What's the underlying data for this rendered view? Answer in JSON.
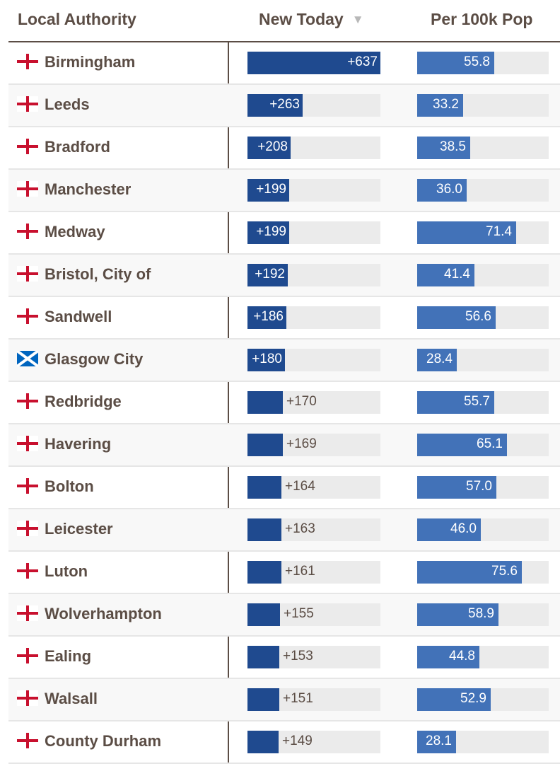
{
  "chart_data": {
    "type": "table",
    "columns": [
      {
        "key": "authority",
        "label": "Local Authority"
      },
      {
        "key": "new_today",
        "label": "New Today",
        "sort": "descending",
        "sort_icon": "sort-down-triangle-icon"
      },
      {
        "key": "per_100k",
        "label": "Per 100k Pop"
      }
    ],
    "new_today_max": 637,
    "per_100k_max": 95,
    "rows": [
      {
        "authority": "Birmingham",
        "flag": "england-flag-icon",
        "new_today": 637,
        "new_today_label": "+637",
        "per_100k": 55.8,
        "per_100k_label": "55.8"
      },
      {
        "authority": "Leeds",
        "flag": "england-flag-icon",
        "new_today": 263,
        "new_today_label": "+263",
        "per_100k": 33.2,
        "per_100k_label": "33.2"
      },
      {
        "authority": "Bradford",
        "flag": "england-flag-icon",
        "new_today": 208,
        "new_today_label": "+208",
        "per_100k": 38.5,
        "per_100k_label": "38.5"
      },
      {
        "authority": "Manchester",
        "flag": "england-flag-icon",
        "new_today": 199,
        "new_today_label": "+199",
        "per_100k": 36.0,
        "per_100k_label": "36.0"
      },
      {
        "authority": "Medway",
        "flag": "england-flag-icon",
        "new_today": 199,
        "new_today_label": "+199",
        "per_100k": 71.4,
        "per_100k_label": "71.4"
      },
      {
        "authority": "Bristol, City of",
        "flag": "england-flag-icon",
        "new_today": 192,
        "new_today_label": "+192",
        "per_100k": 41.4,
        "per_100k_label": "41.4"
      },
      {
        "authority": "Sandwell",
        "flag": "england-flag-icon",
        "new_today": 186,
        "new_today_label": "+186",
        "per_100k": 56.6,
        "per_100k_label": "56.6"
      },
      {
        "authority": "Glasgow City",
        "flag": "scotland-flag-icon",
        "new_today": 180,
        "new_today_label": "+180",
        "per_100k": 28.4,
        "per_100k_label": "28.4"
      },
      {
        "authority": "Redbridge",
        "flag": "england-flag-icon",
        "new_today": 170,
        "new_today_label": "+170",
        "per_100k": 55.7,
        "per_100k_label": "55.7"
      },
      {
        "authority": "Havering",
        "flag": "england-flag-icon",
        "new_today": 169,
        "new_today_label": "+169",
        "per_100k": 65.1,
        "per_100k_label": "65.1"
      },
      {
        "authority": "Bolton",
        "flag": "england-flag-icon",
        "new_today": 164,
        "new_today_label": "+164",
        "per_100k": 57.0,
        "per_100k_label": "57.0"
      },
      {
        "authority": "Leicester",
        "flag": "england-flag-icon",
        "new_today": 163,
        "new_today_label": "+163",
        "per_100k": 46.0,
        "per_100k_label": "46.0"
      },
      {
        "authority": "Luton",
        "flag": "england-flag-icon",
        "new_today": 161,
        "new_today_label": "+161",
        "per_100k": 75.6,
        "per_100k_label": "75.6"
      },
      {
        "authority": "Wolverhampton",
        "flag": "england-flag-icon",
        "new_today": 155,
        "new_today_label": "+155",
        "per_100k": 58.9,
        "per_100k_label": "58.9"
      },
      {
        "authority": "Ealing",
        "flag": "england-flag-icon",
        "new_today": 153,
        "new_today_label": "+153",
        "per_100k": 44.8,
        "per_100k_label": "44.8"
      },
      {
        "authority": "Walsall",
        "flag": "england-flag-icon",
        "new_today": 151,
        "new_today_label": "+151",
        "per_100k": 52.9,
        "per_100k_label": "52.9"
      },
      {
        "authority": "County Durham",
        "flag": "england-flag-icon",
        "new_today": 149,
        "new_today_label": "+149",
        "per_100k": 28.1,
        "per_100k_label": "28.1"
      }
    ]
  },
  "colors": {
    "text": "#5b4d45",
    "new_today_bar": "#1f4a8f",
    "per_100k_bar": "#4272b8",
    "track": "#ebebeb",
    "flag_red": "#c8102e",
    "flag_blue": "#0065bf"
  }
}
